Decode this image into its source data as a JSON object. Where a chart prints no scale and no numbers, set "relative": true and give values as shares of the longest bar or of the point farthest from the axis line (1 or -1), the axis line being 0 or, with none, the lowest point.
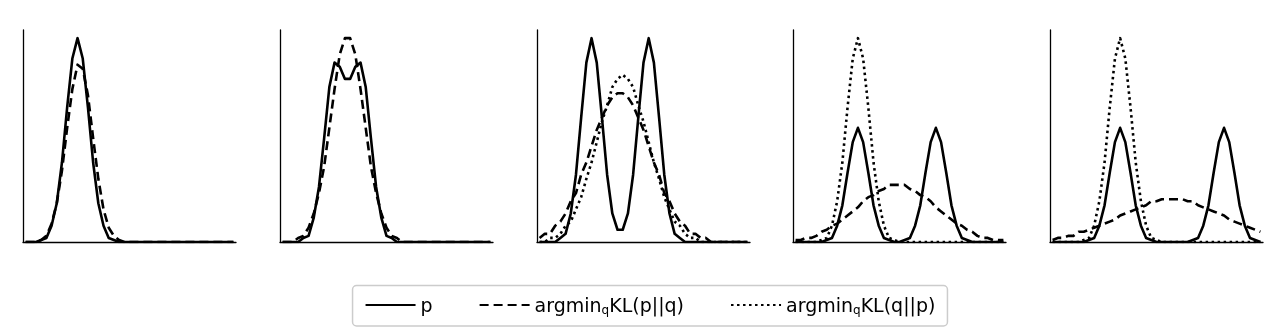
{
  "chart_data": [
    {
      "type": "line",
      "relative": true,
      "grid": false,
      "legend": false,
      "categories": [
        null,
        null,
        null,
        null,
        null,
        null,
        null,
        null,
        null,
        null,
        null,
        null,
        null,
        null,
        null,
        null,
        null,
        null,
        null,
        null,
        null,
        null,
        null,
        null,
        null,
        null,
        null,
        null,
        null,
        null,
        null,
        null,
        null,
        null,
        null,
        null,
        null,
        null,
        null,
        null,
        null
      ],
      "series": [
        {
          "color": "#000000",
          "line_style": "solid",
          "values": [
            0,
            0,
            0,
            0.01,
            0.02,
            0.08,
            0.19,
            0.39,
            0.66,
            0.9,
            1,
            0.9,
            0.66,
            0.39,
            0.19,
            0.08,
            0.02,
            0.01,
            0,
            0,
            0,
            0,
            0,
            0,
            0,
            0,
            0,
            0,
            0,
            0,
            0,
            0,
            0,
            0,
            0,
            0,
            0,
            0,
            0,
            0,
            0
          ]
        },
        {
          "color": "#000000",
          "line_style": "dashed",
          "values": [
            0,
            0,
            0,
            0.01,
            0.03,
            0.09,
            0.19,
            0.35,
            0.56,
            0.75,
            0.87,
            0.85,
            0.72,
            0.51,
            0.31,
            0.16,
            0.07,
            0.03,
            0.01,
            0,
            0,
            0,
            0,
            0,
            0,
            0,
            0,
            0,
            0,
            0,
            0,
            0,
            0,
            0,
            0,
            0,
            0,
            0,
            0,
            0,
            0
          ]
        }
      ]
    },
    {
      "type": "line",
      "relative": true,
      "grid": false,
      "legend": false,
      "categories": [
        null,
        null,
        null,
        null,
        null,
        null,
        null,
        null,
        null,
        null,
        null,
        null,
        null,
        null,
        null,
        null,
        null,
        null,
        null,
        null,
        null,
        null,
        null,
        null,
        null,
        null,
        null,
        null,
        null,
        null,
        null,
        null,
        null,
        null,
        null,
        null,
        null,
        null,
        null,
        null,
        null
      ],
      "series": [
        {
          "color": "#000000",
          "line_style": "solid",
          "values": [
            0,
            0,
            0,
            0,
            0.02,
            0.03,
            0.12,
            0.27,
            0.51,
            0.76,
            0.88,
            0.86,
            0.8,
            0.8,
            0.86,
            0.88,
            0.76,
            0.51,
            0.27,
            0.12,
            0.03,
            0.02,
            0,
            0,
            0,
            0,
            0,
            0,
            0,
            0,
            0,
            0,
            0,
            0,
            0,
            0,
            0,
            0,
            0,
            0,
            0
          ]
        },
        {
          "color": "#000000",
          "line_style": "dashed",
          "values": [
            0,
            0,
            0,
            0.02,
            0.03,
            0.07,
            0.14,
            0.24,
            0.37,
            0.56,
            0.75,
            0.92,
            1,
            1,
            0.92,
            0.75,
            0.56,
            0.37,
            0.24,
            0.14,
            0.07,
            0.03,
            0.02,
            0,
            0,
            0,
            0,
            0,
            0,
            0,
            0,
            0,
            0,
            0,
            0,
            0,
            0,
            0,
            0,
            0,
            0
          ]
        }
      ]
    },
    {
      "type": "line",
      "relative": true,
      "grid": false,
      "legend": "bottom",
      "categories": [
        null,
        null,
        null,
        null,
        null,
        null,
        null,
        null,
        null,
        null,
        null,
        null,
        null,
        null,
        null,
        null,
        null,
        null,
        null,
        null,
        null,
        null,
        null,
        null,
        null,
        null,
        null,
        null,
        null,
        null,
        null,
        null,
        null,
        null,
        null,
        null,
        null,
        null,
        null,
        null,
        null
      ],
      "series": [
        {
          "name": "p",
          "color": "#000000",
          "line_style": "solid",
          "values": [
            0,
            0,
            0,
            0,
            0.02,
            0.04,
            0.14,
            0.33,
            0.61,
            0.88,
            1,
            0.88,
            0.61,
            0.33,
            0.14,
            0.06,
            0.06,
            0.14,
            0.33,
            0.61,
            0.88,
            1,
            0.88,
            0.61,
            0.33,
            0.14,
            0.04,
            0.02,
            0,
            0,
            0,
            0,
            0,
            0,
            0,
            0,
            0,
            0,
            0,
            0,
            0
          ]
        },
        {
          "name": "argmin$_{q}$KL(p||q)",
          "color": "#000000",
          "line_style": "dashed",
          "values": [
            0.02,
            0.04,
            0.04,
            0.08,
            0.1,
            0.14,
            0.2,
            0.24,
            0.33,
            0.39,
            0.47,
            0.55,
            0.61,
            0.67,
            0.71,
            0.73,
            0.73,
            0.71,
            0.67,
            0.61,
            0.55,
            0.47,
            0.39,
            0.33,
            0.24,
            0.2,
            0.14,
            0.1,
            0.08,
            0.04,
            0.04,
            0.02,
            0.02,
            0,
            0,
            0,
            0,
            0,
            0,
            0,
            0
          ]
        },
        {
          "name": "argmin$_{q}$KL(q||p)",
          "color": "#000000",
          "line_style": "dotted",
          "values": [
            0,
            0,
            0.02,
            0.02,
            0.04,
            0.08,
            0.1,
            0.16,
            0.22,
            0.31,
            0.39,
            0.49,
            0.59,
            0.67,
            0.76,
            0.8,
            0.82,
            0.8,
            0.76,
            0.67,
            0.59,
            0.49,
            0.39,
            0.31,
            0.22,
            0.16,
            0.1,
            0.08,
            0.04,
            0.02,
            0.02,
            0,
            0,
            0,
            0,
            0,
            0,
            0,
            0,
            0,
            0
          ]
        }
      ]
    },
    {
      "type": "line",
      "relative": true,
      "grid": false,
      "legend": false,
      "categories": [
        null,
        null,
        null,
        null,
        null,
        null,
        null,
        null,
        null,
        null,
        null,
        null,
        null,
        null,
        null,
        null,
        null,
        null,
        null,
        null,
        null,
        null,
        null,
        null,
        null,
        null,
        null,
        null,
        null,
        null,
        null,
        null,
        null,
        null,
        null,
        null,
        null,
        null,
        null,
        null,
        null
      ],
      "series": [
        {
          "color": "#000000",
          "line_style": "solid",
          "values": [
            0,
            0,
            0,
            0,
            0,
            0,
            0.01,
            0.02,
            0.08,
            0.18,
            0.34,
            0.49,
            0.56,
            0.49,
            0.34,
            0.18,
            0.08,
            0.02,
            0.01,
            0,
            0,
            0.01,
            0.02,
            0.08,
            0.18,
            0.34,
            0.49,
            0.56,
            0.49,
            0.34,
            0.18,
            0.08,
            0.02,
            0.01,
            0,
            0,
            0,
            0,
            0,
            0,
            0
          ]
        },
        {
          "color": "#000000",
          "line_style": "dashed",
          "values": [
            0.01,
            0.01,
            0.02,
            0.02,
            0.03,
            0.05,
            0.06,
            0.08,
            0.09,
            0.11,
            0.13,
            0.15,
            0.17,
            0.2,
            0.22,
            0.23,
            0.25,
            0.26,
            0.28,
            0.28,
            0.28,
            0.28,
            0.26,
            0.25,
            0.23,
            0.22,
            0.2,
            0.17,
            0.15,
            0.13,
            0.11,
            0.09,
            0.08,
            0.06,
            0.05,
            0.03,
            0.02,
            0.02,
            0.01,
            0.01,
            0.01
          ]
        },
        {
          "color": "#000000",
          "line_style": "dotted",
          "values": [
            0,
            0,
            0,
            0,
            0,
            0.01,
            0.02,
            0.08,
            0.2,
            0.39,
            0.66,
            0.9,
            1,
            0.9,
            0.66,
            0.39,
            0.2,
            0.08,
            0.02,
            0.01,
            0,
            0,
            0,
            0,
            0,
            0,
            0,
            0,
            0,
            0,
            0,
            0,
            0,
            0,
            0,
            0,
            0,
            0,
            0,
            0,
            0
          ]
        }
      ]
    },
    {
      "type": "line",
      "relative": true,
      "grid": false,
      "legend": false,
      "categories": [
        null,
        null,
        null,
        null,
        null,
        null,
        null,
        null,
        null,
        null,
        null,
        null,
        null,
        null,
        null,
        null,
        null,
        null,
        null,
        null,
        null,
        null,
        null,
        null,
        null,
        null,
        null,
        null,
        null,
        null,
        null,
        null,
        null,
        null,
        null,
        null,
        null,
        null,
        null,
        null,
        null
      ],
      "series": [
        {
          "color": "#000000",
          "line_style": "solid",
          "values": [
            0,
            0,
            0,
            0,
            0,
            0,
            0,
            0.01,
            0.02,
            0.08,
            0.18,
            0.34,
            0.49,
            0.56,
            0.49,
            0.34,
            0.18,
            0.08,
            0.02,
            0.01,
            0,
            0,
            0,
            0,
            0,
            0,
            0,
            0.01,
            0.02,
            0.08,
            0.18,
            0.34,
            0.49,
            0.56,
            0.49,
            0.34,
            0.18,
            0.08,
            0.02,
            0.01,
            0
          ]
        },
        {
          "color": "#000000",
          "line_style": "dashed",
          "values": [
            0.01,
            0.02,
            0.02,
            0.03,
            0.03,
            0.05,
            0.05,
            0.06,
            0.07,
            0.08,
            0.09,
            0.1,
            0.11,
            0.13,
            0.14,
            0.15,
            0.16,
            0.17,
            0.18,
            0.2,
            0.2,
            0.21,
            0.21,
            0.21,
            0.21,
            0.21,
            0.2,
            0.2,
            0.18,
            0.17,
            0.16,
            0.15,
            0.14,
            0.13,
            0.11,
            0.1,
            0.09,
            0.08,
            0.07,
            0.06,
            0.05
          ]
        },
        {
          "color": "#000000",
          "line_style": "dotted",
          "values": [
            0,
            0,
            0,
            0,
            0,
            0,
            0.01,
            0.02,
            0.08,
            0.2,
            0.39,
            0.66,
            0.9,
            1,
            0.9,
            0.66,
            0.39,
            0.2,
            0.08,
            0.02,
            0.01,
            0,
            0,
            0,
            0,
            0,
            0,
            0,
            0,
            0,
            0,
            0,
            0,
            0,
            0,
            0,
            0,
            0,
            0,
            0,
            0
          ]
        }
      ]
    }
  ]
}
